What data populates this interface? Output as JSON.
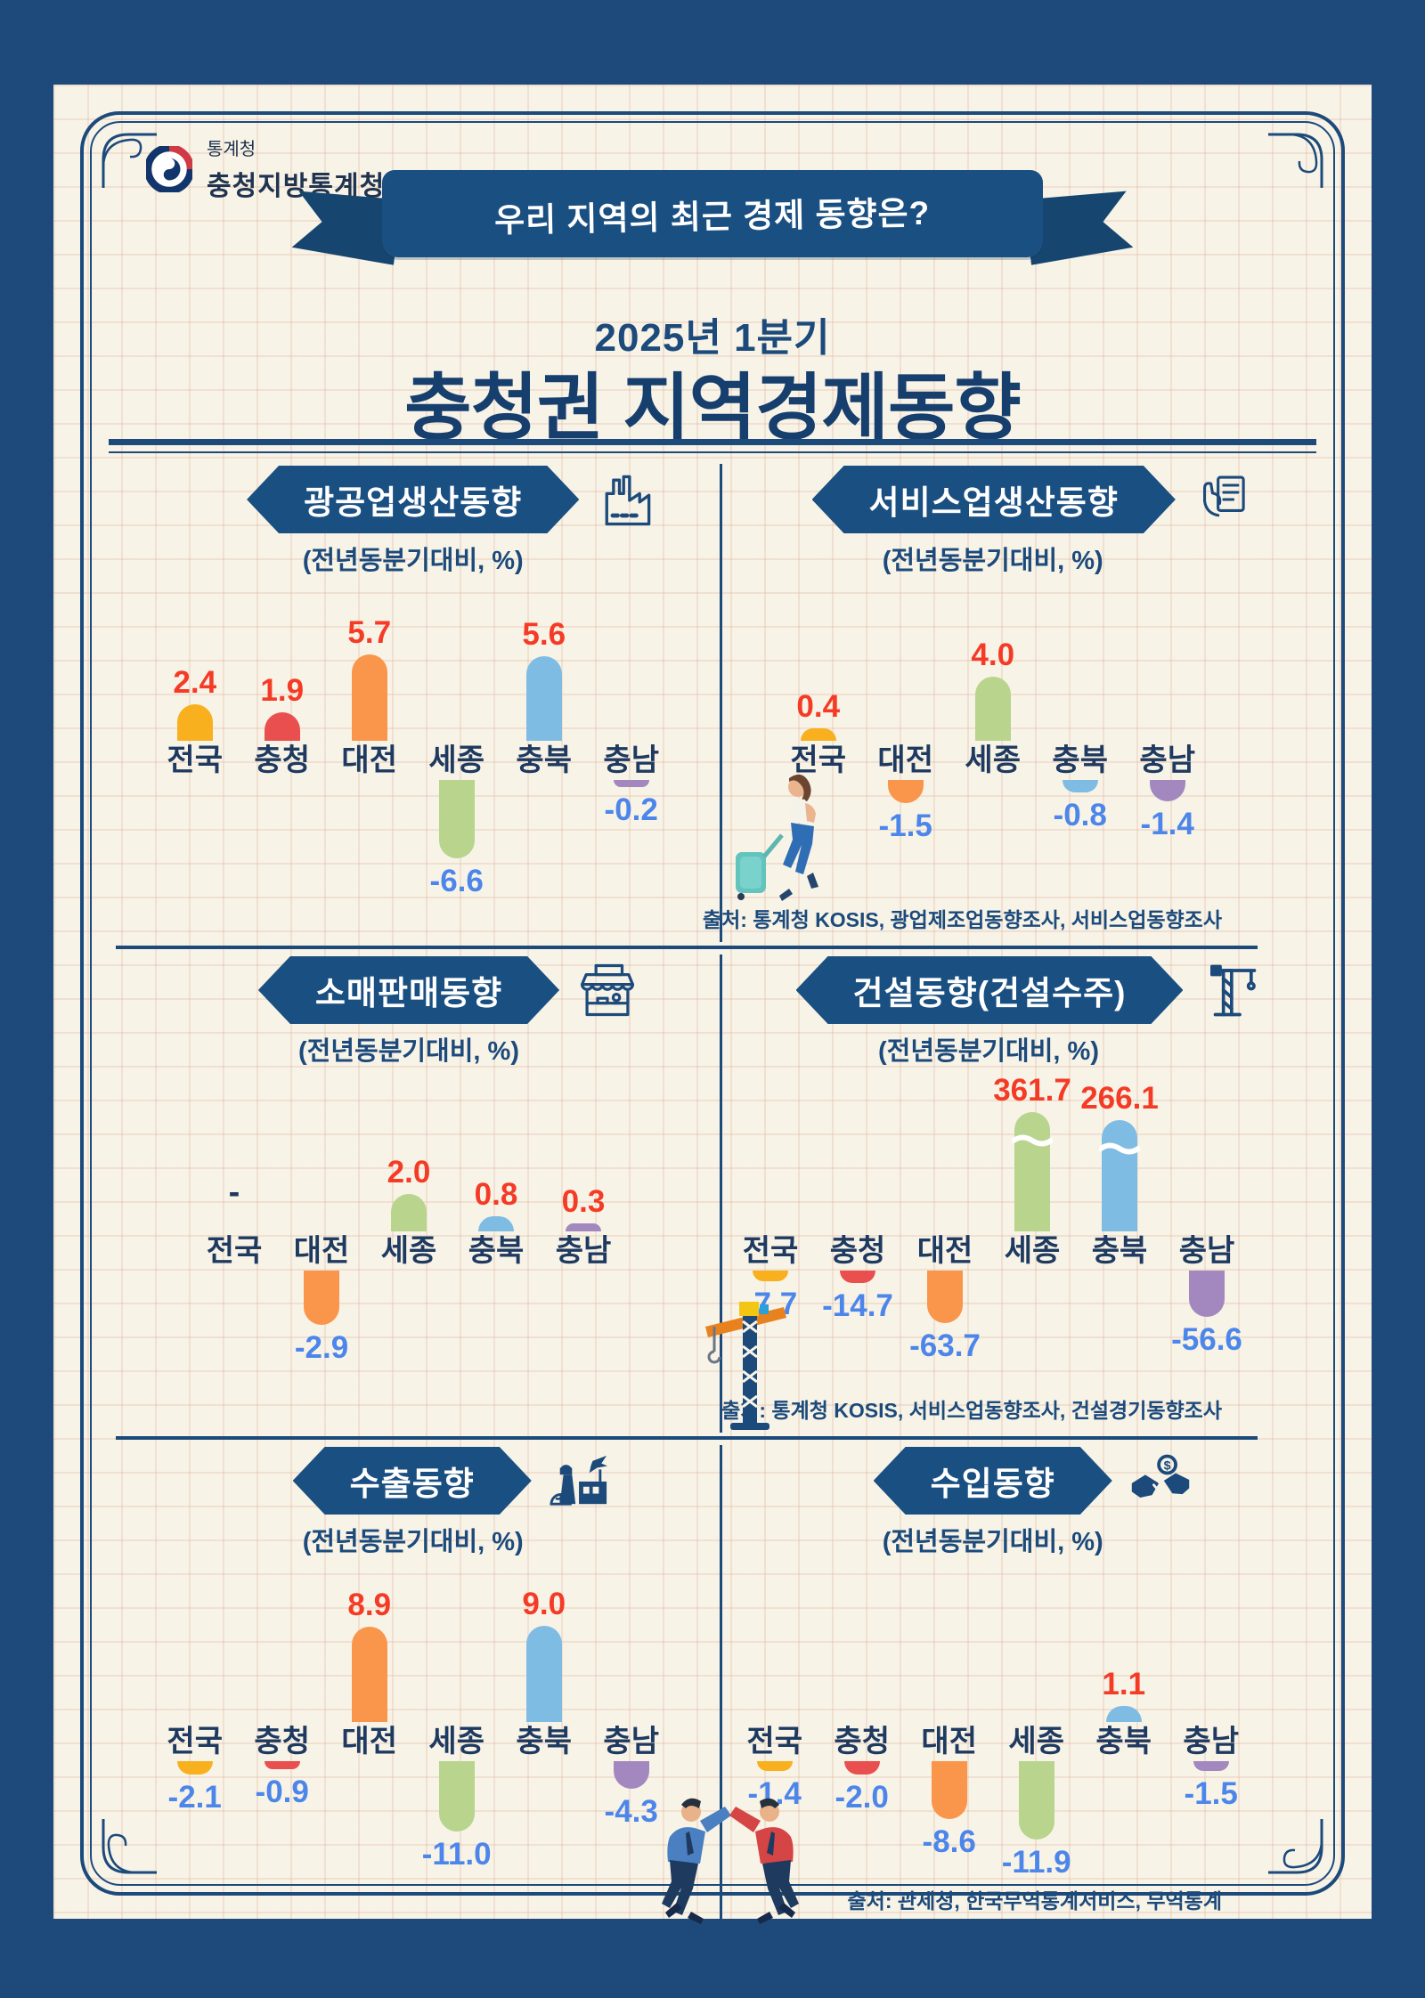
{
  "colors": {
    "outer_background": "#1d4a7a",
    "paper": "#f8f3e7",
    "navy": "#1b4a7b",
    "banner": "#1a4f82",
    "positive_label": "#f43b26",
    "negative_label": "#4c86ea",
    "bars": {
      "전국": "#f8b01f",
      "충청": "#ea4f4f",
      "대전": "#f9964b",
      "세종": "#b8d48d",
      "충북": "#7fbce3",
      "충남": "#a388c0"
    }
  },
  "logo": {
    "agency": "통계청",
    "office": "충청지방통계청"
  },
  "ribbon": {
    "text": "우리 지역의 최근 경제 동향은?"
  },
  "title": {
    "line1": "2025년 1분기",
    "line2": "충청권 지역경제동향"
  },
  "sources": [
    "출처: 통계청 KOSIS, 광업제조업동향조사, 서비스업동향조사",
    "출처: 통계청 KOSIS, 서비스업동향조사, 건설경기동향조사",
    "출처: 관세청, 한국무역통계서비스, 무역통계"
  ],
  "chart_data": [
    {
      "type": "bar",
      "title": "광공업생산동향",
      "subtitle": "(전년동분기대비, %)",
      "icon": "factory-icon",
      "categories": [
        "전국",
        "충청",
        "대전",
        "세종",
        "충북",
        "충남"
      ],
      "values": [
        2.4,
        1.9,
        5.7,
        -6.6,
        5.6,
        -0.2
      ],
      "labels": [
        "2.4",
        "1.9",
        "5.7",
        "-6.6",
        "5.6",
        "-0.2"
      ]
    },
    {
      "type": "bar",
      "title": "서비스업생산동향",
      "subtitle": "(전년동분기대비, %)",
      "icon": "service-icon",
      "categories": [
        "전국",
        "대전",
        "세종",
        "충북",
        "충남"
      ],
      "values": [
        0.4,
        -1.5,
        4.0,
        -0.8,
        -1.4
      ],
      "labels": [
        "0.4",
        "-1.5",
        "4.0",
        "-0.8",
        "-1.4"
      ]
    },
    {
      "type": "bar",
      "title": "소매판매동향",
      "subtitle": "(전년동분기대비, %)",
      "icon": "retail-icon",
      "categories": [
        "전국",
        "대전",
        "세종",
        "충북",
        "충남"
      ],
      "values": [
        null,
        -2.9,
        2.0,
        0.8,
        0.3
      ],
      "labels": [
        "-",
        "-2.9",
        "2.0",
        "0.8",
        "0.3"
      ]
    },
    {
      "type": "bar",
      "title": "건설동향(건설수주)",
      "subtitle": "(전년동분기대비, %)",
      "icon": "crane-icon",
      "categories": [
        "전국",
        "충청",
        "대전",
        "세종",
        "충북",
        "충남"
      ],
      "values": [
        -7.7,
        -14.7,
        -63.7,
        361.7,
        266.1,
        -56.6
      ],
      "labels": [
        "-7.7",
        "-14.7",
        "-63.7",
        "361.7",
        "266.1",
        "-56.6"
      ],
      "axis_breaks": [
        false,
        false,
        false,
        true,
        true,
        false
      ]
    },
    {
      "type": "bar",
      "title": "수출동향",
      "subtitle": "(전년동분기대비, %)",
      "icon": "port-icon",
      "categories": [
        "전국",
        "충청",
        "대전",
        "세종",
        "충북",
        "충남"
      ],
      "values": [
        -2.1,
        -0.9,
        8.9,
        -11.0,
        9.0,
        -4.3
      ],
      "labels": [
        "-2.1",
        "-0.9",
        "8.9",
        "-11.0",
        "9.0",
        "-4.3"
      ]
    },
    {
      "type": "bar",
      "title": "수입동향",
      "subtitle": "(전년동분기대비, %)",
      "icon": "handshake-icon",
      "categories": [
        "전국",
        "충청",
        "대전",
        "세종",
        "충북",
        "충남"
      ],
      "values": [
        -1.4,
        -2.0,
        -8.6,
        -11.9,
        1.1,
        -1.5
      ],
      "labels": [
        "-1.4",
        "-2.0",
        "-8.6",
        "-11.9",
        "1.1",
        "-1.5"
      ]
    }
  ]
}
